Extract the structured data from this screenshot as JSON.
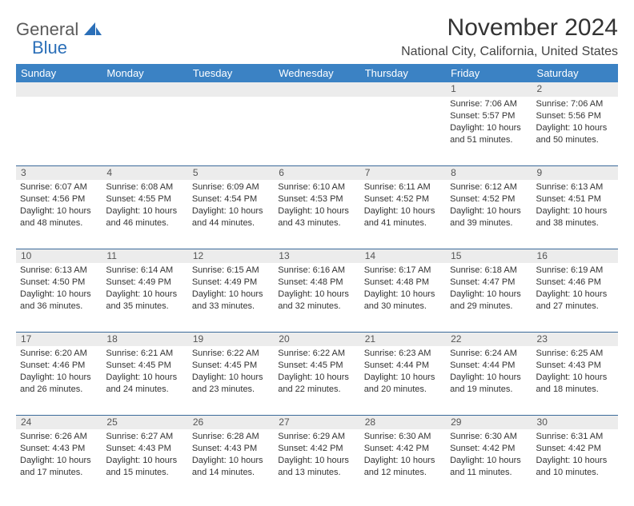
{
  "brand": {
    "word1": "General",
    "word2": "Blue"
  },
  "title": "November 2024",
  "location": "National City, California, United States",
  "colors": {
    "header_bg": "#3b82c4",
    "header_text": "#ffffff",
    "daynum_bg": "#ececec",
    "rule": "#3b6a9a",
    "text": "#333333",
    "brand_gray": "#5a5a5a",
    "brand_blue": "#2b6fb8"
  },
  "fonts": {
    "title_size": 30,
    "location_size": 16,
    "header_size": 13,
    "cell_size": 11
  },
  "dayHeaders": [
    "Sunday",
    "Monday",
    "Tuesday",
    "Wednesday",
    "Thursday",
    "Friday",
    "Saturday"
  ],
  "weeks": [
    [
      {
        "num": "",
        "sunrise": "",
        "sunset": "",
        "daylight": ""
      },
      {
        "num": "",
        "sunrise": "",
        "sunset": "",
        "daylight": ""
      },
      {
        "num": "",
        "sunrise": "",
        "sunset": "",
        "daylight": ""
      },
      {
        "num": "",
        "sunrise": "",
        "sunset": "",
        "daylight": ""
      },
      {
        "num": "",
        "sunrise": "",
        "sunset": "",
        "daylight": ""
      },
      {
        "num": "1",
        "sunrise": "Sunrise: 7:06 AM",
        "sunset": "Sunset: 5:57 PM",
        "daylight": "Daylight: 10 hours and 51 minutes."
      },
      {
        "num": "2",
        "sunrise": "Sunrise: 7:06 AM",
        "sunset": "Sunset: 5:56 PM",
        "daylight": "Daylight: 10 hours and 50 minutes."
      }
    ],
    [
      {
        "num": "3",
        "sunrise": "Sunrise: 6:07 AM",
        "sunset": "Sunset: 4:56 PM",
        "daylight": "Daylight: 10 hours and 48 minutes."
      },
      {
        "num": "4",
        "sunrise": "Sunrise: 6:08 AM",
        "sunset": "Sunset: 4:55 PM",
        "daylight": "Daylight: 10 hours and 46 minutes."
      },
      {
        "num": "5",
        "sunrise": "Sunrise: 6:09 AM",
        "sunset": "Sunset: 4:54 PM",
        "daylight": "Daylight: 10 hours and 44 minutes."
      },
      {
        "num": "6",
        "sunrise": "Sunrise: 6:10 AM",
        "sunset": "Sunset: 4:53 PM",
        "daylight": "Daylight: 10 hours and 43 minutes."
      },
      {
        "num": "7",
        "sunrise": "Sunrise: 6:11 AM",
        "sunset": "Sunset: 4:52 PM",
        "daylight": "Daylight: 10 hours and 41 minutes."
      },
      {
        "num": "8",
        "sunrise": "Sunrise: 6:12 AM",
        "sunset": "Sunset: 4:52 PM",
        "daylight": "Daylight: 10 hours and 39 minutes."
      },
      {
        "num": "9",
        "sunrise": "Sunrise: 6:13 AM",
        "sunset": "Sunset: 4:51 PM",
        "daylight": "Daylight: 10 hours and 38 minutes."
      }
    ],
    [
      {
        "num": "10",
        "sunrise": "Sunrise: 6:13 AM",
        "sunset": "Sunset: 4:50 PM",
        "daylight": "Daylight: 10 hours and 36 minutes."
      },
      {
        "num": "11",
        "sunrise": "Sunrise: 6:14 AM",
        "sunset": "Sunset: 4:49 PM",
        "daylight": "Daylight: 10 hours and 35 minutes."
      },
      {
        "num": "12",
        "sunrise": "Sunrise: 6:15 AM",
        "sunset": "Sunset: 4:49 PM",
        "daylight": "Daylight: 10 hours and 33 minutes."
      },
      {
        "num": "13",
        "sunrise": "Sunrise: 6:16 AM",
        "sunset": "Sunset: 4:48 PM",
        "daylight": "Daylight: 10 hours and 32 minutes."
      },
      {
        "num": "14",
        "sunrise": "Sunrise: 6:17 AM",
        "sunset": "Sunset: 4:48 PM",
        "daylight": "Daylight: 10 hours and 30 minutes."
      },
      {
        "num": "15",
        "sunrise": "Sunrise: 6:18 AM",
        "sunset": "Sunset: 4:47 PM",
        "daylight": "Daylight: 10 hours and 29 minutes."
      },
      {
        "num": "16",
        "sunrise": "Sunrise: 6:19 AM",
        "sunset": "Sunset: 4:46 PM",
        "daylight": "Daylight: 10 hours and 27 minutes."
      }
    ],
    [
      {
        "num": "17",
        "sunrise": "Sunrise: 6:20 AM",
        "sunset": "Sunset: 4:46 PM",
        "daylight": "Daylight: 10 hours and 26 minutes."
      },
      {
        "num": "18",
        "sunrise": "Sunrise: 6:21 AM",
        "sunset": "Sunset: 4:45 PM",
        "daylight": "Daylight: 10 hours and 24 minutes."
      },
      {
        "num": "19",
        "sunrise": "Sunrise: 6:22 AM",
        "sunset": "Sunset: 4:45 PM",
        "daylight": "Daylight: 10 hours and 23 minutes."
      },
      {
        "num": "20",
        "sunrise": "Sunrise: 6:22 AM",
        "sunset": "Sunset: 4:45 PM",
        "daylight": "Daylight: 10 hours and 22 minutes."
      },
      {
        "num": "21",
        "sunrise": "Sunrise: 6:23 AM",
        "sunset": "Sunset: 4:44 PM",
        "daylight": "Daylight: 10 hours and 20 minutes."
      },
      {
        "num": "22",
        "sunrise": "Sunrise: 6:24 AM",
        "sunset": "Sunset: 4:44 PM",
        "daylight": "Daylight: 10 hours and 19 minutes."
      },
      {
        "num": "23",
        "sunrise": "Sunrise: 6:25 AM",
        "sunset": "Sunset: 4:43 PM",
        "daylight": "Daylight: 10 hours and 18 minutes."
      }
    ],
    [
      {
        "num": "24",
        "sunrise": "Sunrise: 6:26 AM",
        "sunset": "Sunset: 4:43 PM",
        "daylight": "Daylight: 10 hours and 17 minutes."
      },
      {
        "num": "25",
        "sunrise": "Sunrise: 6:27 AM",
        "sunset": "Sunset: 4:43 PM",
        "daylight": "Daylight: 10 hours and 15 minutes."
      },
      {
        "num": "26",
        "sunrise": "Sunrise: 6:28 AM",
        "sunset": "Sunset: 4:43 PM",
        "daylight": "Daylight: 10 hours and 14 minutes."
      },
      {
        "num": "27",
        "sunrise": "Sunrise: 6:29 AM",
        "sunset": "Sunset: 4:42 PM",
        "daylight": "Daylight: 10 hours and 13 minutes."
      },
      {
        "num": "28",
        "sunrise": "Sunrise: 6:30 AM",
        "sunset": "Sunset: 4:42 PM",
        "daylight": "Daylight: 10 hours and 12 minutes."
      },
      {
        "num": "29",
        "sunrise": "Sunrise: 6:30 AM",
        "sunset": "Sunset: 4:42 PM",
        "daylight": "Daylight: 10 hours and 11 minutes."
      },
      {
        "num": "30",
        "sunrise": "Sunrise: 6:31 AM",
        "sunset": "Sunset: 4:42 PM",
        "daylight": "Daylight: 10 hours and 10 minutes."
      }
    ]
  ]
}
